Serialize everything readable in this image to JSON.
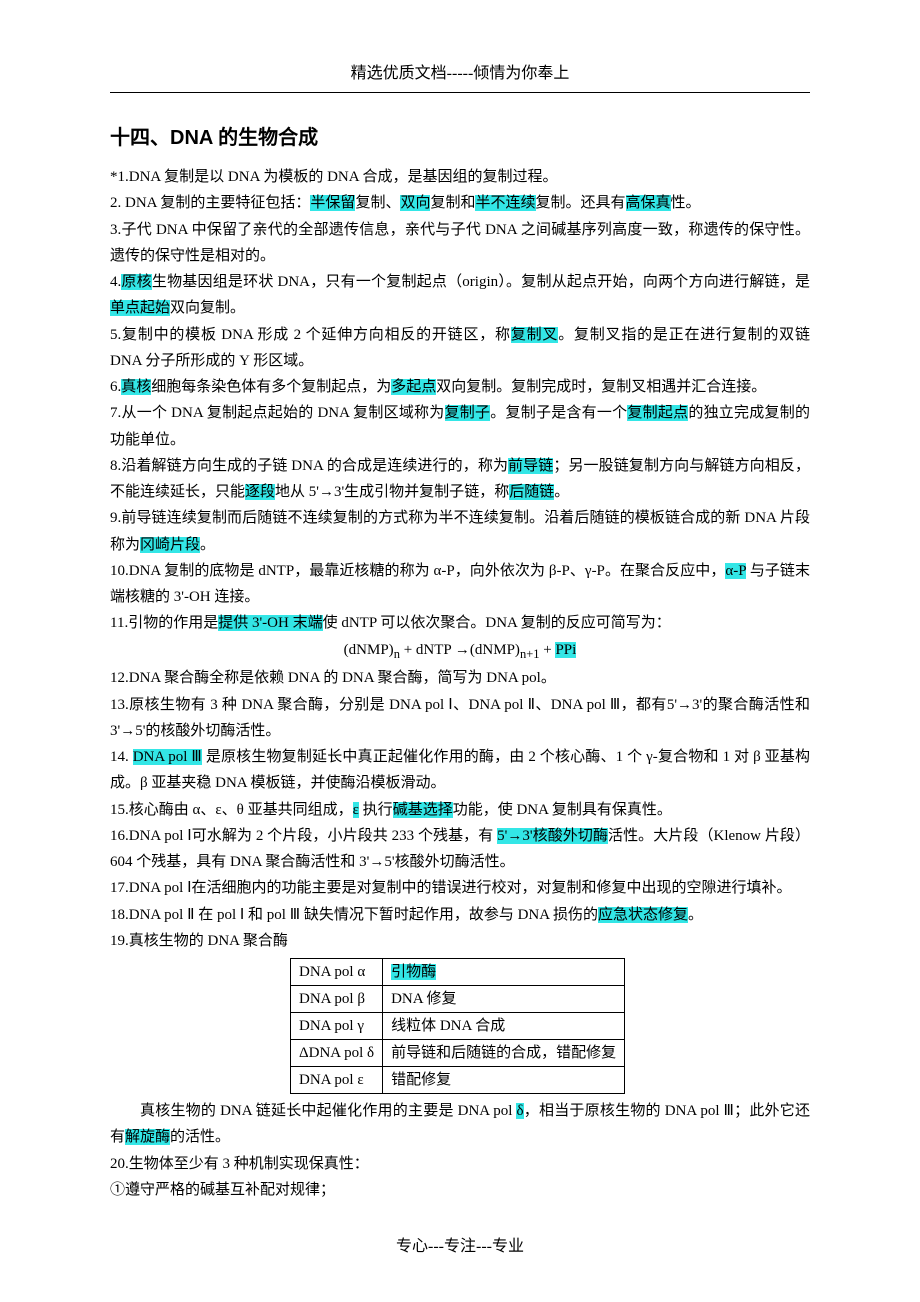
{
  "header": "精选优质文档-----倾情为你奉上",
  "title_prefix": "十四、",
  "title_main": "DNA 的生物合成",
  "p1_a": "*1.DNA 复制是以 DNA 为模板的 DNA 合成，是基因组的复制过程。",
  "p2_a": "2. DNA 复制的主要特征包括：",
  "p2_h1": "半保留",
  "p2_b": "复制、",
  "p2_h2": "双向",
  "p2_c": "复制和",
  "p2_h3": "半不连续",
  "p2_d": "复制。还具有",
  "p2_h4": "高保真",
  "p2_e": "性。",
  "p3_a": "3.子代 DNA 中保留了亲代的全部遗传信息，亲代与子代 DNA 之间碱基序列高度一致，称遗传的保守性。遗传的保守性是相对的。",
  "p4_a": "4.",
  "p4_h1": "原核",
  "p4_b": "生物基因组是环状 DNA，只有一个复制起点（origin）。复制从起点开始，向两个方向进行解链，是",
  "p4_h2": "单点起始",
  "p4_c": "双向复制。",
  "p5_a": "5.复制中的模板 DNA 形成 2 个延伸方向相反的开链区，称",
  "p5_h1": "复制叉",
  "p5_b": "。复制叉指的是正在进行复制的双链 DNA 分子所形成的 Y 形区域。",
  "p6_a": "6.",
  "p6_h1": "真核",
  "p6_b": "细胞每条染色体有多个复制起点，为",
  "p6_h2": "多起点",
  "p6_c": "双向复制。复制完成时，复制叉相遇并汇合连接。",
  "p7_a": "7.从一个 DNA 复制起点起始的 DNA 复制区域称为",
  "p7_h1": "复制子",
  "p7_b": "。复制子是含有一个",
  "p7_h2": "复制起点",
  "p7_c": "的独立完成复制的功能单位。",
  "p8_a": "8.沿着解链方向生成的子链 DNA 的合成是连续进行的，称为",
  "p8_h1": "前导链",
  "p8_b": "；另一股链复制方向与解链方向相反，不能连续延长，只能",
  "p8_h2": "逐段",
  "p8_c": "地从 5'→3'生成引物并复制子链，称",
  "p8_h3": "后随链",
  "p8_d": "。",
  "p9_a": "9.前导链连续复制而后随链不连续复制的方式称为半不连续复制。沿着后随链的模板链合成的新 DNA 片段称为",
  "p9_h1": "冈崎片段",
  "p9_b": "。",
  "p10_a": "10.DNA 复制的底物是 dNTP，最靠近核糖的称为 α-P，向外依次为 β-P、γ-P。在聚合反应中，",
  "p10_h1": "α-P",
  "p10_b": " 与子链末端核糖的 3'-OH 连接。",
  "p11_a": "11.引物的作用是",
  "p11_h1": "提供 3'-OH 末端",
  "p11_b": "使 dNTP 可以依次聚合。DNA 复制的反应可简写为：",
  "formula_a": "(dNMP)",
  "formula_sub1": "n",
  "formula_b": " + dNTP →(dNMP)",
  "formula_sub2": "n+1",
  "formula_c": " + ",
  "formula_h": "PPi",
  "p12_a": "12.DNA 聚合酶全称是依赖 DNA 的 DNA 聚合酶，简写为 DNA pol。",
  "p13_a": "13.原核生物有 3 种 DNA 聚合酶，分别是 DNA pol Ⅰ、DNA pol Ⅱ、DNA pol Ⅲ，都有5'→3'的聚合酶活性和 3'→5'的核酸外切酶活性。",
  "p14_a": "14. ",
  "p14_h1": "DNA pol Ⅲ",
  "p14_b": " 是原核生物复制延长中真正起催化作用的酶，由 2 个核心酶、1 个 γ-复合物和 1 对 β 亚基构成。β 亚基夹稳 DNA 模板链，并使酶沿模板滑动。",
  "p15_a": "15.核心酶由 α、ε、θ 亚基共同组成，",
  "p15_h1": "ε",
  "p15_b": " 执行",
  "p15_h2": "碱基选择",
  "p15_c": "功能，使 DNA 复制具有保真性。",
  "p16_a": "16.DNA pol Ⅰ可水解为 2 个片段，小片段共 233 个残基，有 ",
  "p16_h1": "5'→3'核酸外切酶",
  "p16_b": "活性。大片段（Klenow 片段）604 个残基，具有 DNA 聚合酶活性和 3'→5'核酸外切酶活性。",
  "p17_a": "17.DNA pol Ⅰ在活细胞内的功能主要是对复制中的错误进行校对，对复制和修复中出现的空隙进行填补。",
  "p18_a": "18.DNA pol Ⅱ 在 pol Ⅰ 和 pol Ⅲ 缺失情况下暂时起作用，故参与 DNA 损伤的",
  "p18_h1": "应急状态修复",
  "p18_b": "。",
  "p19_a": "19.真核生物的 DNA 聚合酶",
  "table": {
    "columns": [
      "",
      ""
    ],
    "rows": [
      [
        "DNA pol α",
        "引物酶"
      ],
      [
        "DNA pol β",
        "DNA 修复"
      ],
      [
        "DNA pol γ",
        "线粒体 DNA 合成"
      ],
      [
        "ΔDNA pol δ",
        "前导链和后随链的合成，错配修复"
      ],
      [
        "DNA pol ε",
        "错配修复"
      ]
    ],
    "highlight_cells": [
      [
        0,
        1
      ]
    ]
  },
  "p19b_a": "真核生物的 DNA 链延长中起催化作用的主要是 DNA pol ",
  "p19b_h1": "δ",
  "p19b_b": "，相当于原核生物的 DNA pol Ⅲ；此外它还有",
  "p19b_h2": "解旋酶",
  "p19b_c": "的活性。",
  "p20_a": "20.生物体至少有 3 种机制实现保真性：",
  "p20_1": "①遵守严格的碱基互补配对规律；",
  "footer": "专心---专注---专业"
}
